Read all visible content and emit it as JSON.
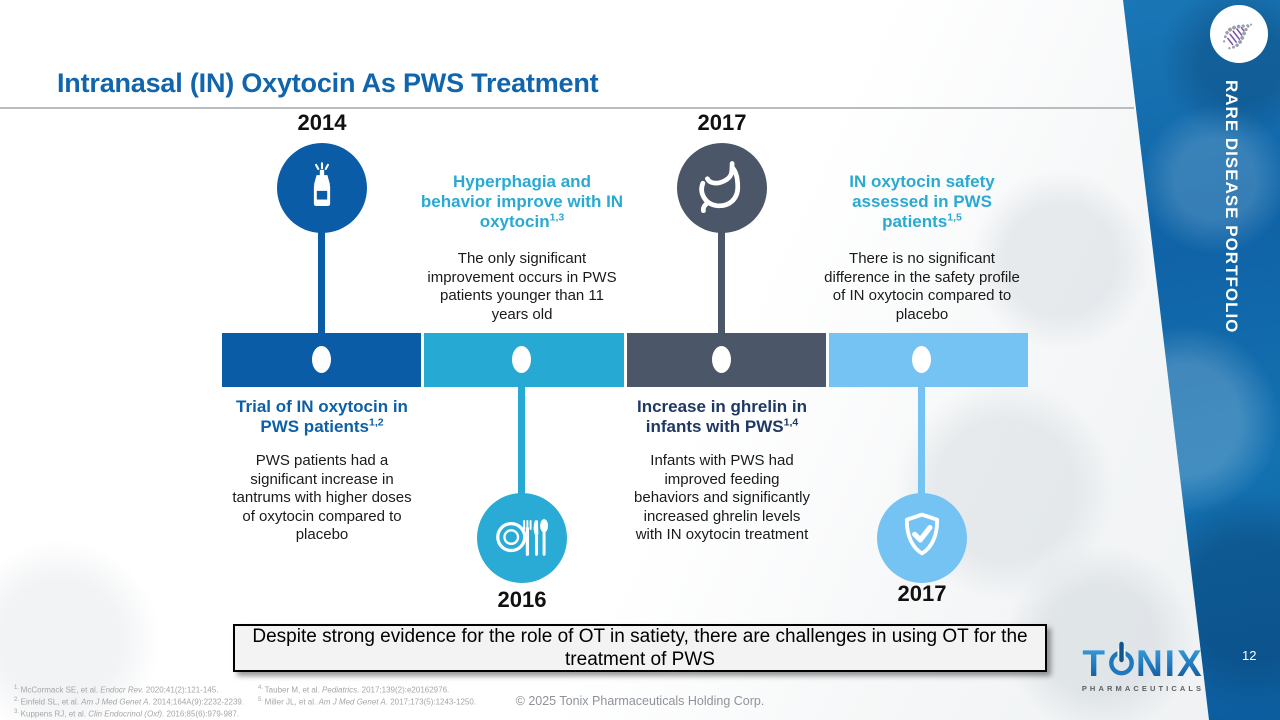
{
  "slide": {
    "title": "Intranasal (IN) Oxytocin As PWS Treatment",
    "sidebar_label": "RARE DISEASE PORTFOLIO",
    "page_number": "12",
    "banner_text": "Despite strong evidence for the role of OT in satiety, there are challenges in using OT for the treatment of PWS",
    "copyright": "© 2025 Tonix Pharmaceuticals Holding Corp."
  },
  "colors": {
    "title_blue": "#1065ad",
    "segment_dark_blue": "#0b5ca6",
    "segment_cyan": "#26aad3",
    "segment_slate": "#4b5668",
    "segment_light_blue": "#75c3f3",
    "heading_cyan": "#2aa9d2",
    "heading_navy": "#1f3864",
    "heading_blue": "#0d60a8"
  },
  "timeline": {
    "events": [
      {
        "year": "2014",
        "icon": "nasal-spray-icon",
        "placement": "icon-above-text-below",
        "heading": "Trial of IN oxytocin in PWS patients",
        "heading_sup": "1,2",
        "body": "PWS patients had a significant increase in tantrums with higher doses of oxytocin compared to placebo"
      },
      {
        "year": "2016",
        "icon": "plate-cutlery-icon",
        "placement": "text-above-icon-below",
        "heading": "Hyperphagia and behavior improve with IN oxytocin",
        "heading_sup": "1,3",
        "body": "The only significant improvement occurs in PWS patients younger than 11 years old"
      },
      {
        "year": "2017",
        "icon": "stomach-icon",
        "placement": "icon-above-text-below",
        "heading": "Increase in ghrelin in infants with PWS",
        "heading_sup": "1,4",
        "body": "Infants with PWS had improved feeding behaviors and significantly increased ghrelin levels with IN oxytocin treatment"
      },
      {
        "year": "2017",
        "icon": "shield-check-icon",
        "placement": "text-above-icon-below",
        "heading": "IN oxytocin safety assessed in PWS patients",
        "heading_sup": "1,5",
        "body": "There is no significant difference in the safety profile of IN oxytocin compared to placebo"
      }
    ]
  },
  "footnotes": {
    "col1": [
      {
        "num": "1.",
        "pre": "McCormack SE, et al. ",
        "journal": "Endocr Rev.",
        "post": " 2020;41(2):121-145."
      },
      {
        "num": "2.",
        "pre": "Einfeld SL, et al. ",
        "journal": "Am J Med Genet A.",
        "post": " 2014;164A(9):2232-2239."
      },
      {
        "num": "3.",
        "pre": "Kuppens RJ, et al. ",
        "journal": "Clin Endocrinol (Oxf).",
        "post": " 2016;85(6):979-987."
      }
    ],
    "col2": [
      {
        "num": "4.",
        "pre": "Tauber M, et al. ",
        "journal": "Pediatrics.",
        "post": " 2017;139(2):e20162976."
      },
      {
        "num": "5.",
        "pre": "Miller JL, et al. ",
        "journal": "Am J Med Genet A.",
        "post": " 2017;173(5):1243-1250."
      }
    ]
  },
  "logo": {
    "brand_left": "T",
    "brand_right": "NIX",
    "subtitle": "PHARMACEUTICALS"
  }
}
